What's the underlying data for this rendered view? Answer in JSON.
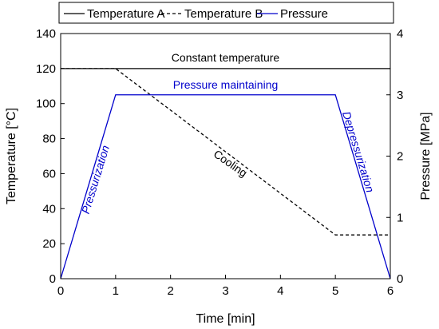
{
  "chart_data": {
    "type": "line",
    "xlabel": "Time [min]",
    "ylabel_left": "Temperature [°C]",
    "ylabel_right": "Pressure [MPa]",
    "xlim": [
      0,
      6
    ],
    "ylim_left": [
      0,
      140
    ],
    "ylim_right": [
      0,
      4
    ],
    "x_ticks": [
      "0",
      "1",
      "2",
      "3",
      "4",
      "5",
      "6"
    ],
    "y_left_ticks": [
      "0",
      "20",
      "40",
      "60",
      "80",
      "100",
      "120",
      "140"
    ],
    "y_right_ticks": [
      "0",
      "1",
      "2",
      "3",
      "4"
    ],
    "grid": false,
    "legend_placement": "top",
    "series": [
      {
        "name": "Temperature A",
        "axis": "left",
        "style": "solid",
        "color": "#000000",
        "x": [
          0,
          6
        ],
        "y": [
          120,
          120
        ]
      },
      {
        "name": "Temperature B",
        "axis": "left",
        "style": "dashed",
        "color": "#000000",
        "x": [
          0,
          1,
          5,
          6
        ],
        "y": [
          120,
          120,
          25,
          25
        ]
      },
      {
        "name": "Pressure",
        "axis": "right",
        "style": "solid",
        "color": "#0000cc",
        "x": [
          0,
          1,
          5,
          6
        ],
        "y": [
          0,
          3,
          3,
          0
        ]
      }
    ],
    "annotations": [
      {
        "text": "Constant temperature",
        "color": "#000000"
      },
      {
        "text": "Pressure maintaining",
        "color": "#0000cc"
      },
      {
        "text": "Cooling",
        "color": "#000000"
      },
      {
        "text": "Pressurization",
        "color": "#0000cc"
      },
      {
        "text": "Depressurization",
        "color": "#0000cc"
      }
    ]
  }
}
